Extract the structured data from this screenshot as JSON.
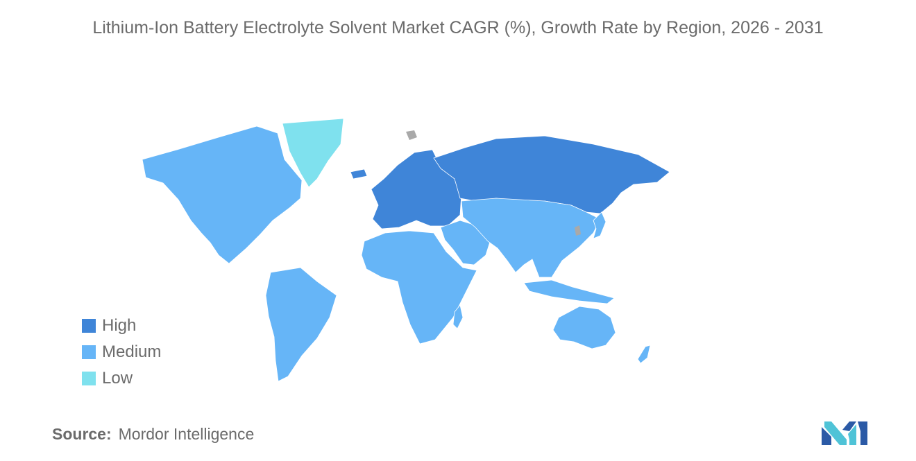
{
  "title": "Lithium-Ion Battery Electrolyte Solvent Market CAGR (%), Growth Rate by Region, 2026 - 2031",
  "legend": [
    {
      "label": "High",
      "color": "#3f85d8"
    },
    {
      "label": "Medium",
      "color": "#66b5f7"
    },
    {
      "label": "Low",
      "color": "#7fe1ee"
    }
  ],
  "no_data_color": "#a9a9a9",
  "regions": {
    "north_america": "Medium",
    "greenland": "Low",
    "south_america": "Medium",
    "europe": "High",
    "russia": "High",
    "africa": "Medium",
    "middle_east": "Medium",
    "asia": "Medium",
    "oceania": "Medium"
  },
  "source": {
    "label": "Source:",
    "value": "Mordor Intelligence"
  },
  "logo": {
    "icon": "mordor-intelligence-logo-icon",
    "colors": [
      "#2b5aa6",
      "#4fc3d7"
    ]
  }
}
